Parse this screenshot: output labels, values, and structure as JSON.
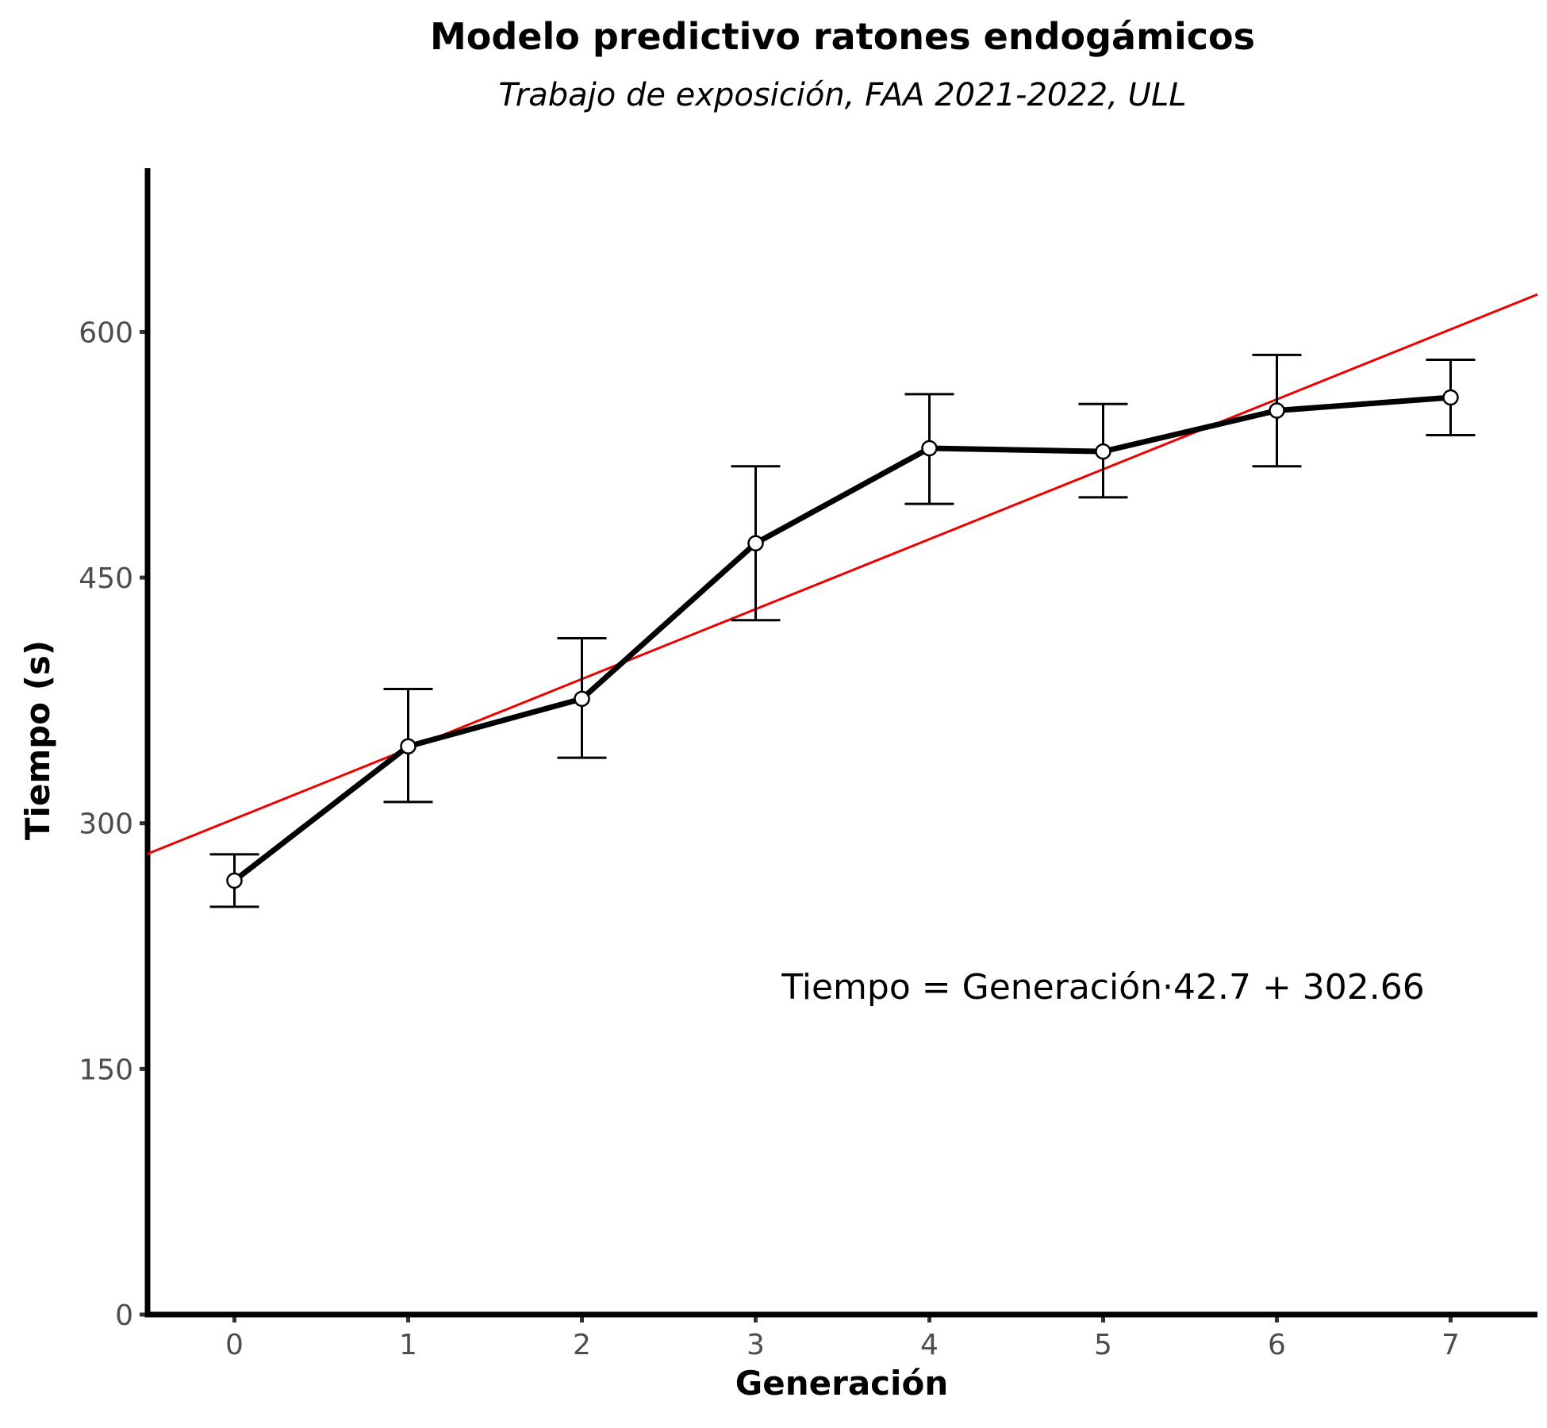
{
  "chart_data": {
    "type": "line",
    "title": "Modelo predictivo ratones endogámicos",
    "subtitle": "Trabajo de exposición, FAA 2021-2022, ULL",
    "xlabel": "Generación",
    "ylabel": "Tiempo (s)",
    "xlim": [
      -0.5,
      7.5
    ],
    "ylim": [
      0,
      700
    ],
    "x_ticks": [
      0,
      1,
      2,
      3,
      4,
      5,
      6,
      7
    ],
    "y_ticks": [
      0,
      150,
      300,
      450,
      600
    ],
    "grid": false,
    "legend": "none",
    "series": [
      {
        "x": [
          0,
          1,
          2,
          3,
          4,
          5,
          6,
          7
        ],
        "y": [
          265,
          347,
          376,
          471,
          529,
          527,
          552,
          560
        ],
        "error_low": [
          249,
          313,
          340,
          424,
          495,
          499,
          518,
          537
        ],
        "error_high": [
          281,
          382,
          413,
          518,
          562,
          556,
          586,
          583
        ],
        "color": "#000000"
      }
    ],
    "fit_line": {
      "slope": 42.7,
      "intercept": 302.66,
      "color": "#ee0000"
    },
    "annotation": {
      "text": "Tiempo = Generación·42.7 + 302.66",
      "x": 5,
      "y": 200
    }
  }
}
